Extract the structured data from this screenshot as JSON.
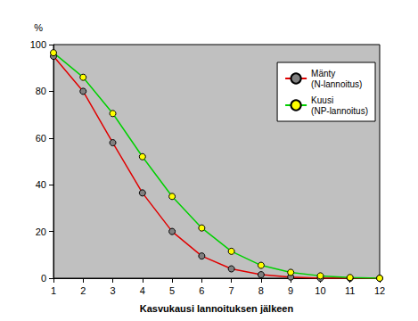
{
  "chart_data": {
    "type": "line",
    "x_label": "Kasvukausi lannoituksen jälkeen",
    "y_label": "%",
    "x": [
      1,
      2,
      3,
      4,
      5,
      6,
      7,
      8,
      9,
      10,
      11,
      12
    ],
    "series": [
      {
        "name": "Mänty\n(N-lannoitus)",
        "color": "#e00000",
        "marker": "circle",
        "values": [
          95,
          80,
          58,
          36.5,
          20,
          9.5,
          4,
          1.5,
          0.5,
          0,
          0,
          0
        ]
      },
      {
        "name": "Kuusi\n(NP-lannoitus)",
        "color": "#00d000",
        "marker": "circle",
        "values": [
          96.5,
          86,
          70.5,
          52,
          35,
          21.5,
          11.5,
          5.5,
          2.5,
          1,
          0.3,
          0
        ]
      }
    ],
    "xlim": [
      1,
      12
    ],
    "xticks": [
      1,
      2,
      3,
      4,
      5,
      6,
      7,
      8,
      9,
      10,
      11,
      12
    ],
    "ylim": [
      0,
      100
    ],
    "yticks": [
      0,
      20,
      40,
      60,
      80,
      100
    ],
    "grid": false,
    "legend": "upper right"
  }
}
